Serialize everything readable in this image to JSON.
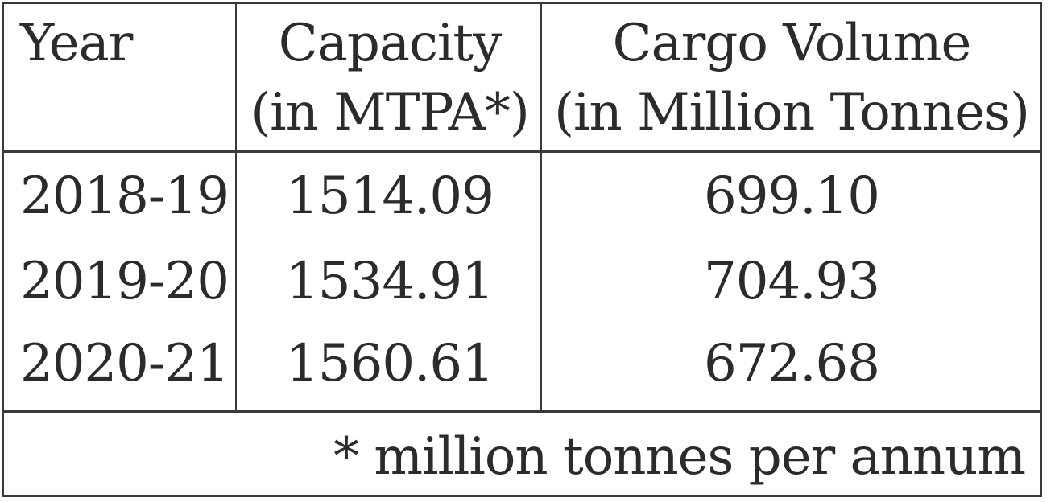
{
  "table": {
    "headers": {
      "year": "Year",
      "capacity_line1": "Capacity",
      "capacity_line2": "(in MTPA*)",
      "cargo_line1": "Cargo Volume",
      "cargo_line2": "(in Million Tonnes)"
    },
    "rows": [
      {
        "year": "2018-19",
        "capacity": "1514.09",
        "cargo": "699.10"
      },
      {
        "year": "2019-20",
        "capacity": "1534.91",
        "cargo": "704.93"
      },
      {
        "year": "2020-21",
        "capacity": "1560.61",
        "cargo": "672.68"
      }
    ],
    "footnote": "* million tonnes per annum"
  }
}
